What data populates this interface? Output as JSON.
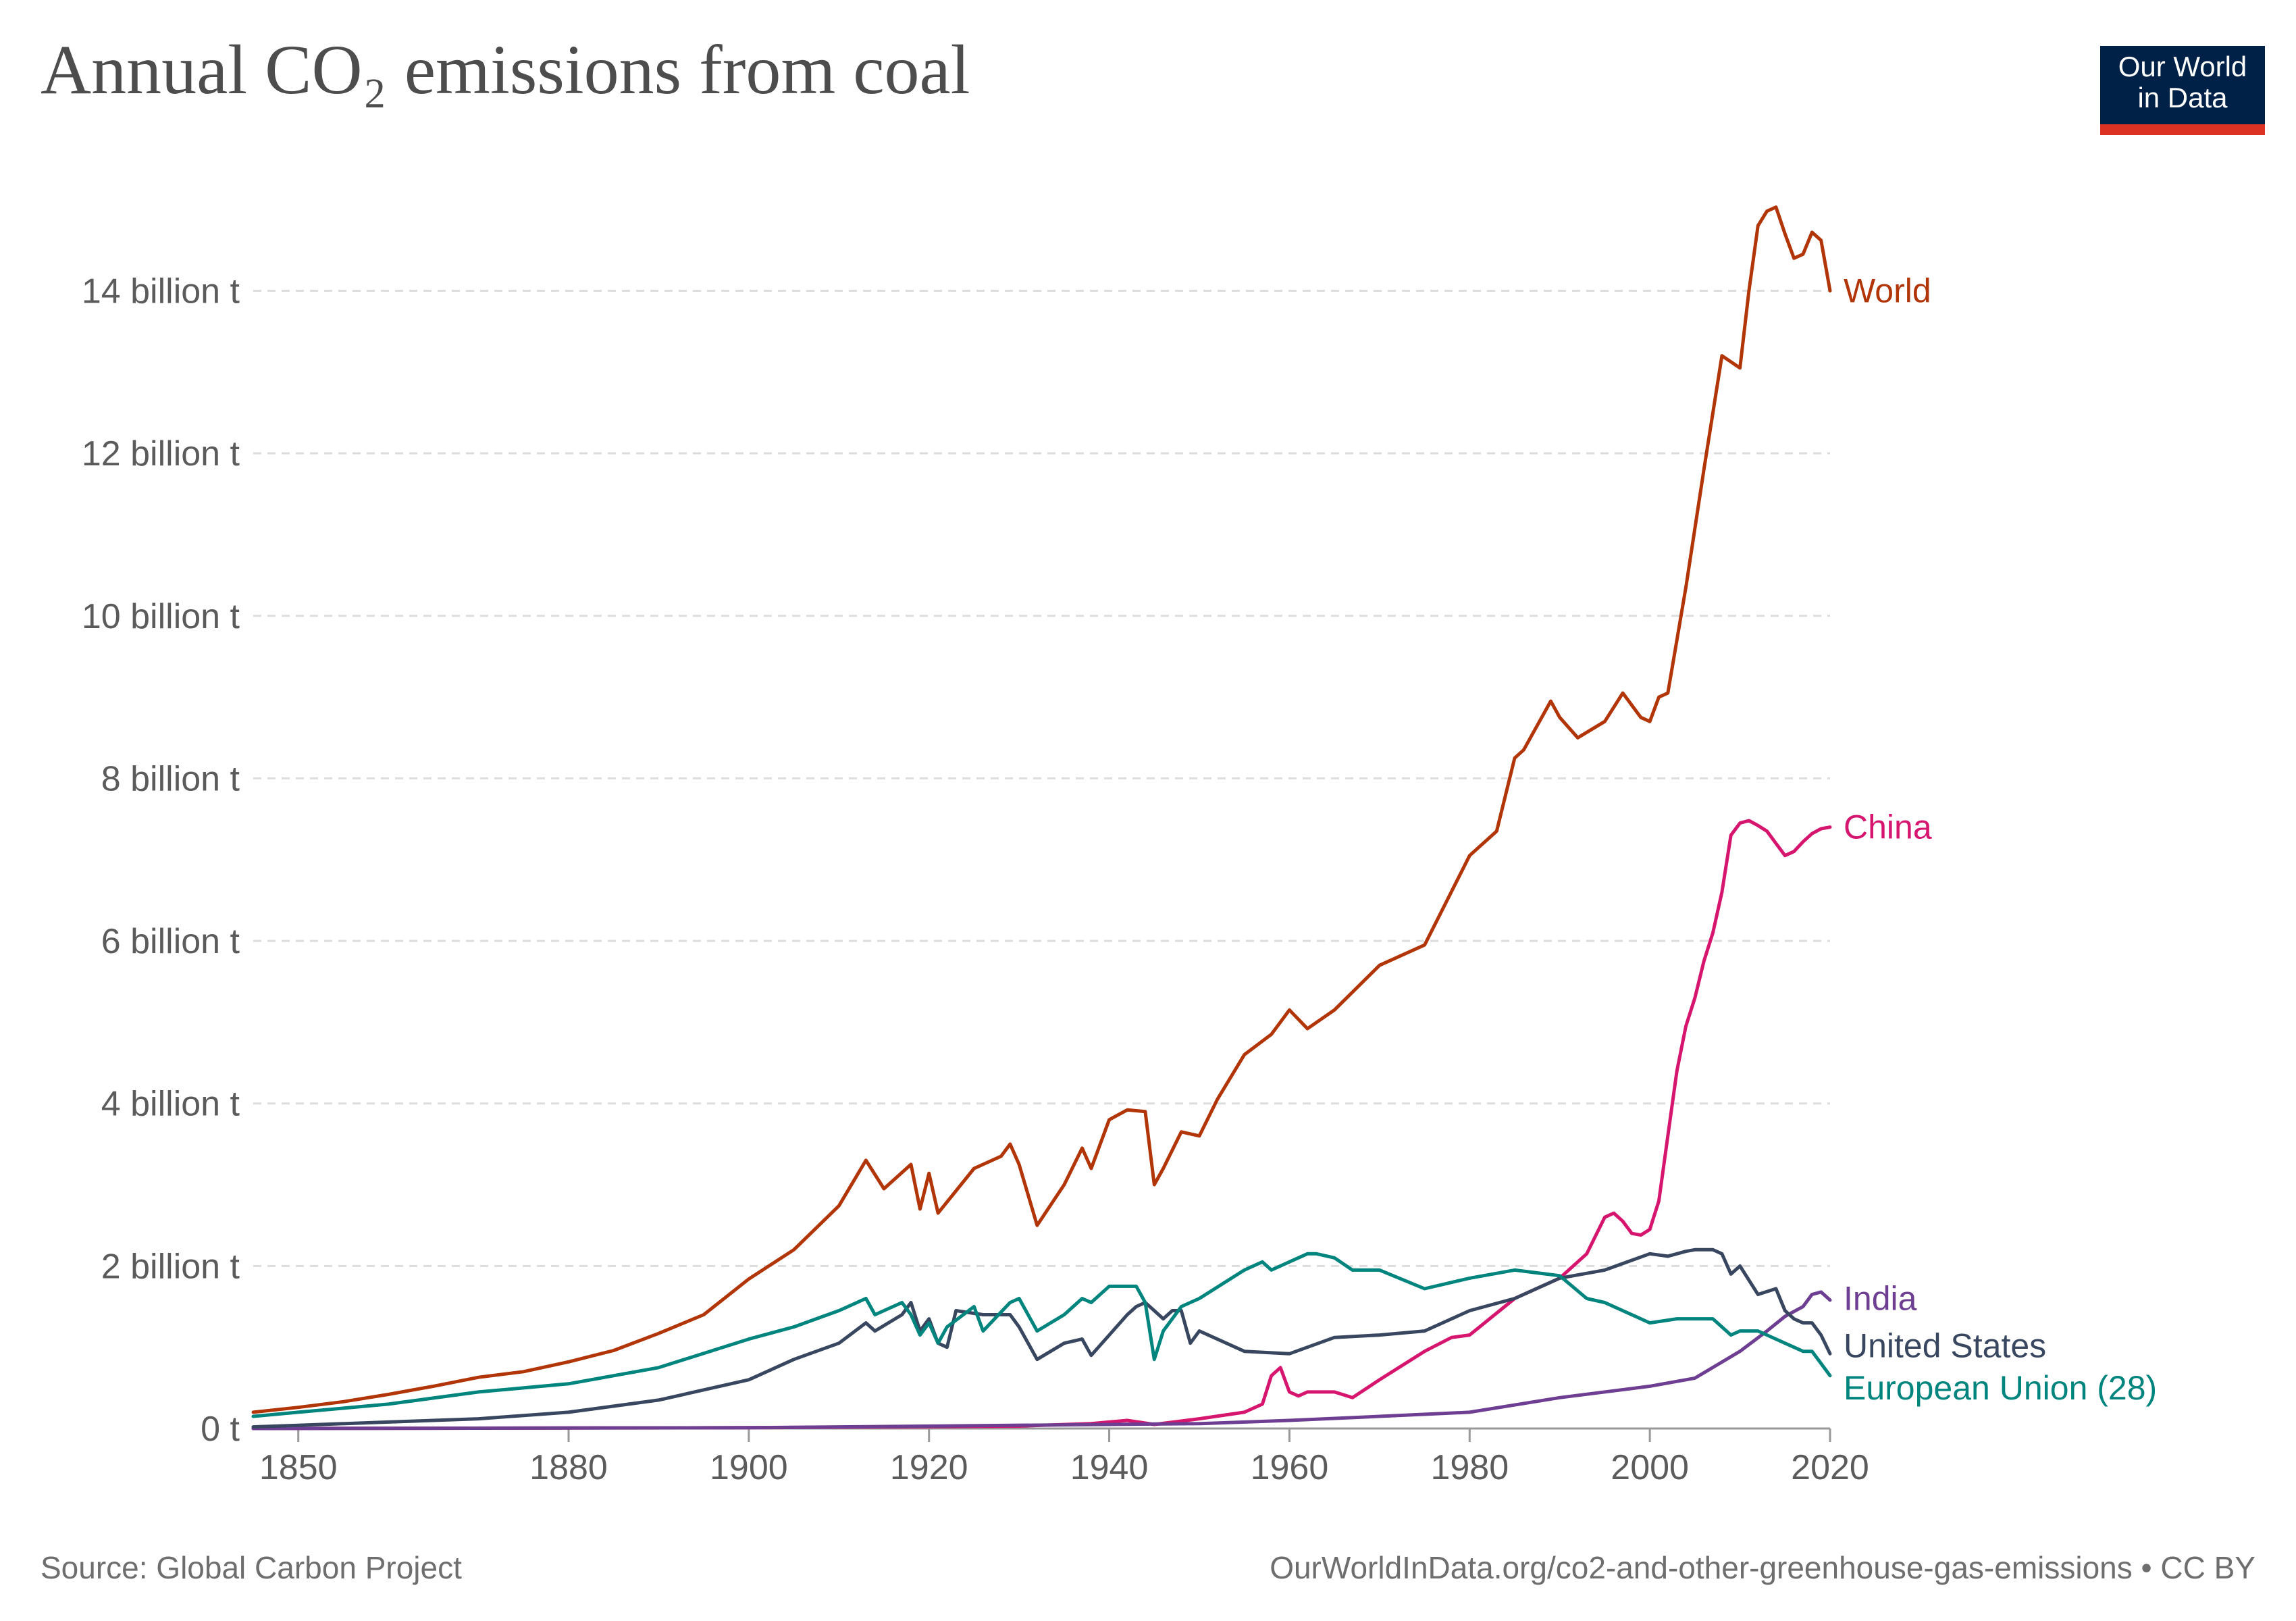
{
  "header": {
    "title": "Annual CO₂ emissions from coal",
    "logo_line1": "Our World",
    "logo_line2": "in Data"
  },
  "footer": {
    "source": "Source: Global Carbon Project",
    "url": "OurWorldInData.org/co2-and-other-greenhouse-gas-emissions • CC BY"
  },
  "colors": {
    "World": "#b13507",
    "China": "#d6156e",
    "India": "#6d3e91",
    "United States": "#38475f",
    "European Union (28)": "#00847e"
  },
  "chart_data": {
    "type": "line",
    "title": "Annual CO₂ emissions from coal",
    "xlabel": "",
    "ylabel": "",
    "xlim": [
      1845,
      2020
    ],
    "ylim": [
      0,
      15.5
    ],
    "x_ticks": [
      1850,
      1880,
      1900,
      1920,
      1940,
      1960,
      1980,
      2000,
      2020
    ],
    "x_tick_labels": [
      "1850",
      "1880",
      "1900",
      "1920",
      "1940",
      "1960",
      "1980",
      "2000",
      "2020"
    ],
    "y_ticks": [
      0,
      2,
      4,
      6,
      8,
      10,
      12,
      14
    ],
    "y_tick_labels": [
      "0 t",
      "2 billion t",
      "4 billion t",
      "6 billion t",
      "8 billion t",
      "10 billion t",
      "12 billion t",
      "14 billion t"
    ],
    "y_unit": "billion t",
    "grid": true,
    "legend": "inline labels at right end of lines",
    "series": [
      {
        "name": "World",
        "x": [
          1845,
          1850,
          1855,
          1860,
          1865,
          1870,
          1875,
          1880,
          1885,
          1890,
          1895,
          1900,
          1905,
          1910,
          1913,
          1915,
          1918,
          1919,
          1920,
          1921,
          1925,
          1928,
          1929,
          1930,
          1932,
          1935,
          1937,
          1938,
          1940,
          1942,
          1944,
          1945,
          1946,
          1948,
          1950,
          1952,
          1955,
          1958,
          1960,
          1962,
          1965,
          1970,
          1975,
          1980,
          1983,
          1985,
          1986,
          1989,
          1990,
          1992,
          1995,
          1997,
          1999,
          2000,
          2001,
          2002,
          2004,
          2006,
          2008,
          2010,
          2011,
          2012,
          2013,
          2014,
          2015,
          2016,
          2017,
          2018,
          2019,
          2020
        ],
        "y": [
          0.2,
          0.26,
          0.33,
          0.42,
          0.52,
          0.63,
          0.7,
          0.82,
          0.96,
          1.17,
          1.4,
          1.84,
          2.2,
          2.74,
          3.3,
          2.95,
          3.25,
          2.7,
          3.14,
          2.65,
          3.2,
          3.35,
          3.5,
          3.25,
          2.5,
          3.0,
          3.45,
          3.2,
          3.8,
          3.92,
          3.9,
          3.0,
          3.2,
          3.65,
          3.6,
          4.05,
          4.6,
          4.85,
          5.15,
          4.92,
          5.15,
          5.7,
          5.95,
          7.05,
          7.35,
          8.25,
          8.35,
          8.95,
          8.75,
          8.5,
          8.7,
          9.05,
          8.75,
          8.7,
          9.0,
          9.05,
          10.35,
          11.8,
          13.2,
          13.05,
          14.0,
          14.8,
          14.98,
          15.03,
          14.7,
          14.4,
          14.45,
          14.72,
          14.62,
          14.0
        ]
      },
      {
        "name": "China",
        "x": [
          1845,
          1900,
          1930,
          1938,
          1940,
          1942,
          1945,
          1950,
          1955,
          1957,
          1958,
          1959,
          1960,
          1961,
          1962,
          1965,
          1967,
          1970,
          1975,
          1978,
          1980,
          1985,
          1990,
          1993,
          1995,
          1996,
          1997,
          1998,
          1999,
          2000,
          2001,
          2002,
          2003,
          2004,
          2005,
          2006,
          2007,
          2008,
          2009,
          2010,
          2011,
          2012,
          2013,
          2014,
          2015,
          2016,
          2017,
          2018,
          2019,
          2020
        ],
        "y": [
          0,
          0.01,
          0.03,
          0.06,
          0.08,
          0.1,
          0.05,
          0.12,
          0.2,
          0.3,
          0.65,
          0.75,
          0.45,
          0.4,
          0.45,
          0.45,
          0.38,
          0.6,
          0.95,
          1.12,
          1.15,
          1.6,
          1.85,
          2.15,
          2.6,
          2.65,
          2.55,
          2.4,
          2.38,
          2.45,
          2.8,
          3.6,
          4.4,
          4.95,
          5.3,
          5.75,
          6.1,
          6.6,
          7.3,
          7.45,
          7.48,
          7.42,
          7.35,
          7.2,
          7.05,
          7.1,
          7.22,
          7.32,
          7.38,
          7.4
        ]
      },
      {
        "name": "India",
        "x": [
          1845,
          1900,
          1950,
          1960,
          1970,
          1980,
          1990,
          2000,
          2005,
          2010,
          2013,
          2015,
          2017,
          2018,
          2019,
          2020
        ],
        "y": [
          0,
          0.01,
          0.06,
          0.1,
          0.15,
          0.2,
          0.38,
          0.52,
          0.62,
          0.95,
          1.2,
          1.38,
          1.5,
          1.65,
          1.68,
          1.58
        ]
      },
      {
        "name": "United States",
        "x": [
          1845,
          1850,
          1860,
          1870,
          1880,
          1890,
          1900,
          1905,
          1910,
          1913,
          1914,
          1917,
          1918,
          1919,
          1920,
          1921,
          1922,
          1923,
          1926,
          1929,
          1930,
          1932,
          1935,
          1937,
          1938,
          1940,
          1942,
          1943,
          1944,
          1945,
          1946,
          1947,
          1948,
          1949,
          1950,
          1955,
          1960,
          1965,
          1970,
          1975,
          1980,
          1985,
          1990,
          1995,
          2000,
          2002,
          2004,
          2005,
          2007,
          2008,
          2009,
          2010,
          2012,
          2014,
          2015,
          2016,
          2017,
          2018,
          2019,
          2020
        ],
        "y": [
          0.02,
          0.04,
          0.08,
          0.12,
          0.2,
          0.35,
          0.6,
          0.85,
          1.05,
          1.3,
          1.2,
          1.4,
          1.55,
          1.2,
          1.35,
          1.05,
          1.0,
          1.45,
          1.4,
          1.4,
          1.25,
          0.85,
          1.05,
          1.1,
          0.9,
          1.15,
          1.4,
          1.5,
          1.55,
          1.45,
          1.35,
          1.45,
          1.45,
          1.05,
          1.2,
          0.95,
          0.92,
          1.12,
          1.15,
          1.2,
          1.45,
          1.6,
          1.85,
          1.95,
          2.15,
          2.12,
          2.18,
          2.2,
          2.2,
          2.15,
          1.9,
          2.0,
          1.65,
          1.72,
          1.45,
          1.35,
          1.3,
          1.3,
          1.15,
          0.92
        ]
      },
      {
        "name": "European Union (28)",
        "x": [
          1845,
          1850,
          1860,
          1870,
          1880,
          1890,
          1900,
          1905,
          1910,
          1913,
          1914,
          1917,
          1918,
          1919,
          1920,
          1921,
          1922,
          1925,
          1926,
          1929,
          1930,
          1932,
          1935,
          1937,
          1938,
          1940,
          1943,
          1944,
          1945,
          1946,
          1948,
          1950,
          1955,
          1957,
          1958,
          1960,
          1962,
          1963,
          1965,
          1967,
          1970,
          1975,
          1980,
          1985,
          1990,
          1993,
          1995,
          2000,
          2003,
          2005,
          2007,
          2009,
          2010,
          2012,
          2014,
          2015,
          2017,
          2018,
          2019,
          2020
        ],
        "y": [
          0.15,
          0.2,
          0.3,
          0.45,
          0.55,
          0.75,
          1.1,
          1.25,
          1.45,
          1.6,
          1.4,
          1.55,
          1.4,
          1.15,
          1.3,
          1.05,
          1.25,
          1.5,
          1.2,
          1.55,
          1.6,
          1.2,
          1.4,
          1.6,
          1.55,
          1.75,
          1.75,
          1.55,
          0.85,
          1.2,
          1.5,
          1.6,
          1.95,
          2.05,
          1.95,
          2.05,
          2.15,
          2.15,
          2.1,
          1.95,
          1.95,
          1.72,
          1.85,
          1.95,
          1.88,
          1.6,
          1.55,
          1.3,
          1.35,
          1.35,
          1.35,
          1.15,
          1.2,
          1.2,
          1.1,
          1.05,
          0.95,
          0.95,
          0.8,
          0.65
        ]
      }
    ]
  }
}
